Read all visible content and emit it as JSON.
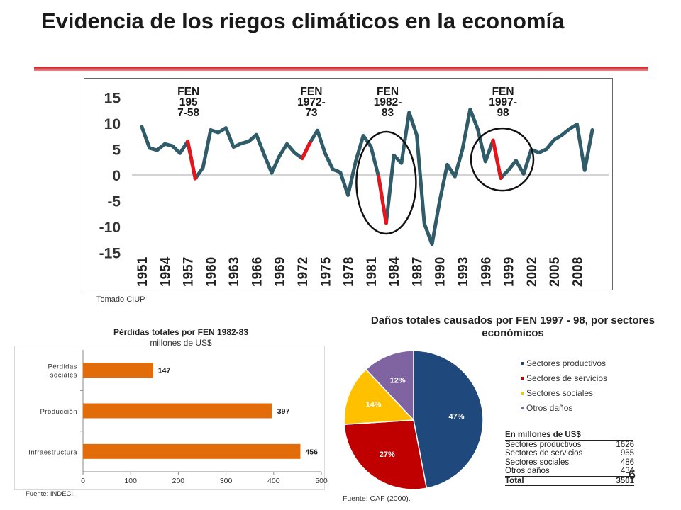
{
  "title": "Evidencia de los riegos climáticos en la economía",
  "page_number": "6",
  "line_chart": {
    "source": "Tomado CIUP",
    "el_nino_labels": [
      "FEN\n195\n7-58",
      "FEN\n1972-\n73",
      "FEN\n1982-\n83",
      "FEN\n1997-\n98"
    ]
  },
  "bar_chart": {
    "title": "Pérdidas totales por FEN 1982-83",
    "subtitle": "millones de US$",
    "source": "Fuente: INDECI."
  },
  "pie_chart": {
    "title": "Daños totales causados por FEN 1997 - 98, por sectores económicos",
    "source": "Fuente: CAF (2000)."
  },
  "table": {
    "header": "En millones de US$",
    "rows": [
      {
        "label": "Sectores productivos",
        "value": "1626"
      },
      {
        "label": "Sectores de servicios",
        "value": "955"
      },
      {
        "label": "Sectores sociales",
        "value": "486"
      },
      {
        "label": "Otros daños",
        "value": "434"
      }
    ],
    "total": {
      "label": "Total",
      "value": "3501"
    }
  },
  "colors": {
    "line": "#2f5c68",
    "highlight": "#e8141c",
    "bar": "#e36c0a",
    "pie": [
      "#1f497d",
      "#c00000",
      "#ffc000",
      "#8064a2"
    ]
  },
  "chart_data": [
    {
      "type": "line",
      "title": "",
      "xlabel": "",
      "ylabel": "",
      "x_tick_labels": [
        "1951",
        "1954",
        "1957",
        "1960",
        "1963",
        "1966",
        "1969",
        "1972",
        "1975",
        "1978",
        "1981",
        "1984",
        "1987",
        "1990",
        "1993",
        "1996",
        "1999",
        "2002",
        "2005",
        "2008"
      ],
      "y_ticks": [
        15,
        10,
        5,
        0,
        -5,
        -10,
        -15
      ],
      "ylim": [
        -15,
        15
      ],
      "grid": false,
      "x": [
        1951,
        1952,
        1953,
        1954,
        1955,
        1956,
        1957,
        1958,
        1959,
        1960,
        1961,
        1962,
        1963,
        1964,
        1965,
        1966,
        1967,
        1968,
        1969,
        1970,
        1971,
        1972,
        1973,
        1974,
        1975,
        1976,
        1977,
        1978,
        1979,
        1980,
        1981,
        1982,
        1983,
        1984,
        1985,
        1986,
        1987,
        1988,
        1989,
        1990,
        1991,
        1992,
        1993,
        1994,
        1995,
        1996,
        1997,
        1998,
        1999,
        2000,
        2001,
        2002,
        2003,
        2004,
        2005,
        2006,
        2007,
        2008,
        2009,
        2010
      ],
      "series": [
        {
          "values": [
            9.3,
            5.2,
            4.8,
            6.0,
            5.6,
            4.2,
            6.5,
            -0.7,
            1.4,
            8.7,
            8.2,
            9.1,
            5.4,
            6.1,
            6.5,
            7.8,
            4.0,
            0.4,
            3.6,
            6.0,
            4.3,
            3.2,
            6.2,
            8.6,
            4.2,
            1.1,
            0.5,
            -3.9,
            2.6,
            7.6,
            5.5,
            -0.3,
            -9.3,
            3.8,
            2.3,
            12.1,
            7.7,
            -9.4,
            -13.4,
            -5.1,
            2.0,
            -0.3,
            5.0,
            12.7,
            8.8,
            2.6,
            6.7,
            -0.6,
            0.9,
            2.8,
            0.2,
            4.9,
            4.3,
            5.0,
            6.8,
            7.7,
            8.9,
            9.8,
            0.9,
            8.7
          ]
        }
      ],
      "highlighted_segments": [
        [
          1957,
          1958
        ],
        [
          1972,
          1973
        ],
        [
          1982,
          1983
        ],
        [
          1997,
          1998
        ]
      ],
      "annotations": [
        "FEN 195 7-58",
        "FEN 1972- 73",
        "FEN 1982- 83",
        "FEN 1997- 98"
      ]
    },
    {
      "type": "bar",
      "orientation": "horizontal",
      "title": "Pérdidas totales por FEN 1982-83",
      "subtitle": "millones de US$",
      "categories": [
        "Pérdidas sociales",
        "Producción",
        "Infraestructura"
      ],
      "category_lines": [
        [
          "Pérdidas",
          "sociales"
        ],
        [
          "Producción"
        ],
        [
          "Infraestructura"
        ]
      ],
      "values": [
        147,
        397,
        456
      ],
      "xlim": [
        0,
        500
      ],
      "x_ticks": [
        0,
        100,
        200,
        300,
        400,
        500
      ]
    },
    {
      "type": "pie",
      "title": "Daños totales causados por FEN 1997 - 98, por sectores económicos",
      "labels": [
        "Sectores productivos",
        "Sectores de servicios",
        "Sectores sociales",
        "Otros daños"
      ],
      "values": [
        47,
        27,
        14,
        12
      ],
      "value_labels": [
        "47%",
        "27%",
        "14%",
        "12%"
      ],
      "legend_position": "right"
    }
  ]
}
